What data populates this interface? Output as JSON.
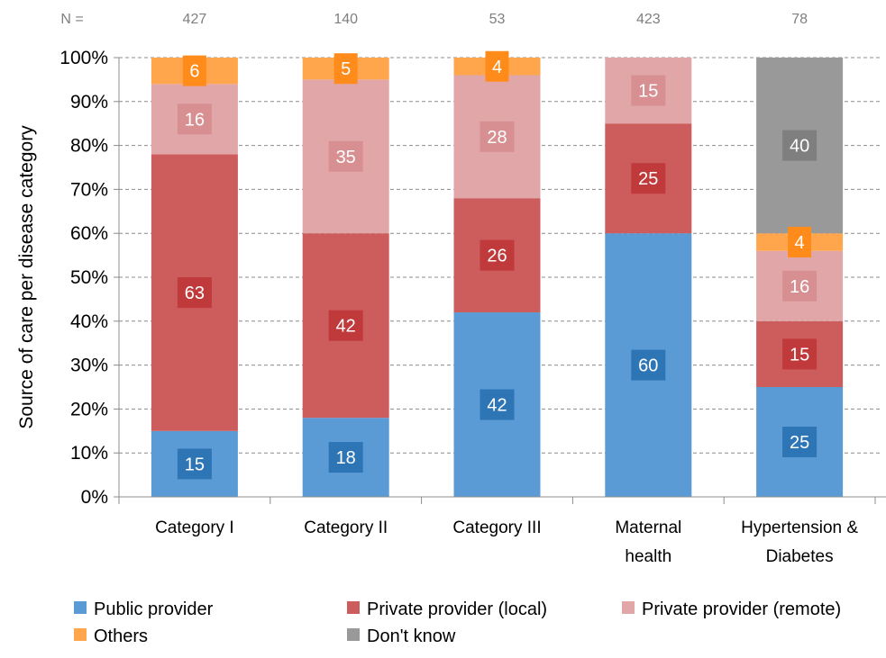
{
  "chart_data": {
    "type": "bar",
    "stacked": true,
    "percent_stacked": true,
    "categories": [
      [
        "Category I"
      ],
      [
        "Category II"
      ],
      [
        "Category III"
      ],
      [
        "Maternal",
        "health"
      ],
      [
        "Hypertension &",
        "Diabetes"
      ]
    ],
    "n_prefix": "N =",
    "n_values": [
      "427",
      "140",
      "53",
      "423",
      "78"
    ],
    "series": [
      {
        "name": "Public provider",
        "color": "#5b9bd5",
        "label_bg": "#2e75b6",
        "values": [
          15,
          18,
          42,
          60,
          25
        ]
      },
      {
        "name": "Private provider (local)",
        "color": "#cd5c5c",
        "label_bg": "#c0393b",
        "values": [
          63,
          42,
          26,
          25,
          15
        ]
      },
      {
        "name": "Private provider (remote)",
        "color": "#e0a6a8",
        "label_bg": "#d88f92",
        "values": [
          16,
          35,
          28,
          15,
          16
        ]
      },
      {
        "name": "Others",
        "color": "#ffa64d",
        "label_bg": "#ff8c1a",
        "values": [
          6,
          5,
          4,
          0,
          4
        ]
      },
      {
        "name": "Don't know",
        "color": "#999999",
        "label_bg": "#7f7f7f",
        "values": [
          0,
          0,
          0,
          0,
          40
        ]
      }
    ],
    "ylabel": "Source of care per disease category",
    "ylim": [
      0,
      100
    ],
    "ytick_labels": [
      "0%",
      "10%",
      "20%",
      "30%",
      "40%",
      "50%",
      "60%",
      "70%",
      "80%",
      "90%",
      "100%"
    ],
    "grid": true,
    "legend_position": "bottom"
  }
}
